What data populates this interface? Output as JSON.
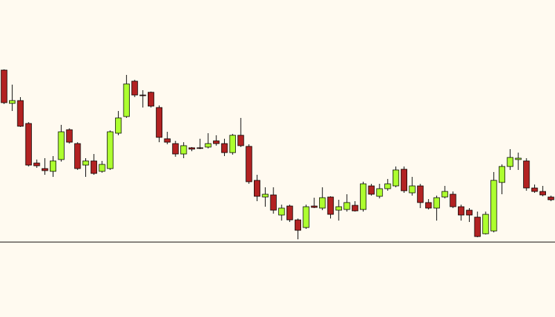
{
  "chart_data": {
    "type": "candlestick",
    "ylim": [
      0,
      457
    ],
    "up_color": "#adff2f",
    "down_color": "#b22222",
    "outline_color": "#000000",
    "open": [
      356,
      308,
      312,
      279,
      222,
      214,
      210,
      227,
      270,
      250,
      219,
      225,
      210,
      214,
      265,
      289,
      340,
      320,
      324,
      302,
      257,
      250,
      235,
      244,
      244,
      245,
      254,
      250,
      237,
      262,
      246,
      197,
      173,
      176,
      147,
      160,
      140,
      129,
      160,
      157,
      173,
      154,
      155,
      161,
      155,
      189,
      174,
      185,
      189,
      213,
      179,
      189,
      165,
      157,
      173,
      177,
      159,
      154,
      144,
      120,
      124,
      194,
      217,
      227,
      225,
      186,
      181,
      173
    ],
    "high": [
      357,
      335,
      317,
      281,
      227,
      229,
      232,
      277,
      272,
      252,
      229,
      235,
      225,
      269,
      297,
      349,
      342,
      327,
      325,
      305,
      267,
      254,
      252,
      245,
      257,
      265,
      262,
      257,
      264,
      287,
      249,
      205,
      187,
      187,
      162,
      162,
      142,
      162,
      172,
      187,
      174,
      169,
      177,
      167,
      195,
      192,
      192,
      199,
      217,
      217,
      202,
      192,
      170,
      175,
      189,
      181,
      162,
      157,
      152,
      152,
      209,
      220,
      242,
      237,
      229,
      191,
      189,
      175
    ],
    "low": [
      307,
      297,
      274,
      217,
      215,
      205,
      202,
      224,
      250,
      212,
      202,
      205,
      208,
      212,
      262,
      287,
      317,
      302,
      302,
      252,
      249,
      231,
      229,
      239,
      242,
      243,
      247,
      232,
      234,
      245,
      192,
      167,
      159,
      149,
      139,
      137,
      112,
      127,
      157,
      154,
      142,
      139,
      152,
      152,
      152,
      175,
      171,
      182,
      187,
      179,
      175,
      157,
      155,
      139,
      171,
      157,
      139,
      137,
      115,
      119,
      122,
      177,
      212,
      212,
      182,
      179,
      174,
      167
    ],
    "close": [
      309,
      312,
      275,
      219,
      218,
      211,
      225,
      267,
      252,
      214,
      225,
      207,
      220,
      267,
      287,
      336,
      320,
      319,
      304,
      259,
      252,
      235,
      247,
      242,
      243,
      250,
      250,
      237,
      262,
      247,
      195,
      174,
      177,
      154,
      157,
      140,
      125,
      159,
      158,
      172,
      148,
      159,
      165,
      153,
      192,
      177,
      185,
      192,
      212,
      182,
      189,
      165,
      157,
      172,
      181,
      159,
      147,
      147,
      116,
      148,
      197,
      217,
      230,
      229,
      186,
      181,
      176,
      169
    ]
  }
}
